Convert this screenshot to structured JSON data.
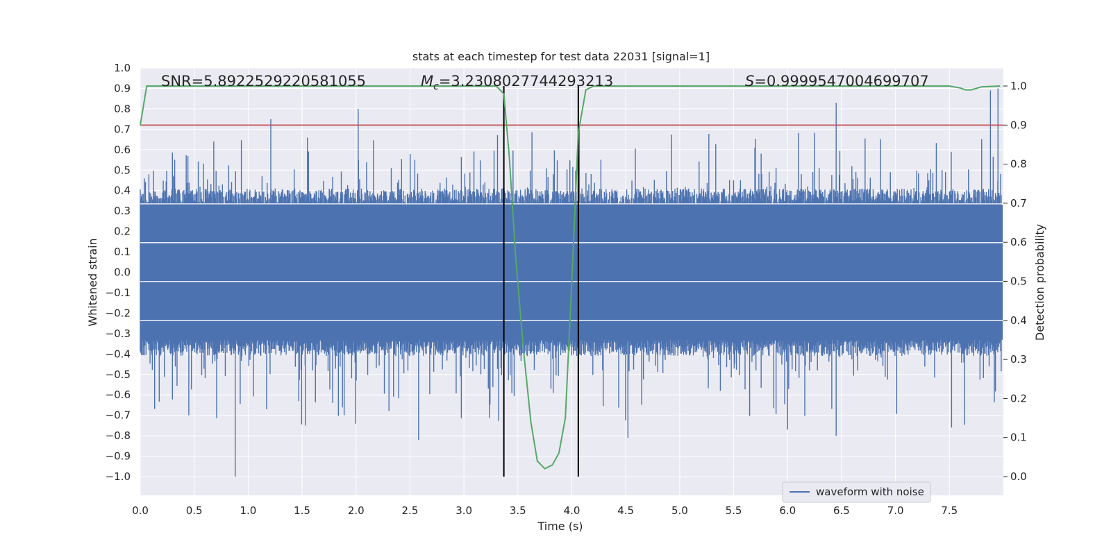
{
  "chart_data": {
    "type": "line",
    "title": "stats at each timestep for test data 22031 [signal=1]",
    "xlabel": "Time (s)",
    "ylabel": "Whitened strain",
    "ylabel_right": "Detection probability",
    "xlim": [
      0.0,
      8.0
    ],
    "ylim": [
      -1.0,
      1.0
    ],
    "ylim_right": [
      0.0,
      1.0
    ],
    "x_ticks": [
      "0.0",
      "0.5",
      "1.0",
      "1.5",
      "2.0",
      "2.5",
      "3.0",
      "3.5",
      "4.0",
      "4.5",
      "5.0",
      "5.5",
      "6.0",
      "6.5",
      "7.0",
      "7.5"
    ],
    "y_ticks": [
      "1.0",
      "0.9",
      "0.8",
      "0.7",
      "0.6",
      "0.5",
      "0.4",
      "0.3",
      "0.2",
      "0.1",
      "0.0",
      "−0.1",
      "−0.2",
      "−0.3",
      "−0.4",
      "−0.5",
      "−0.6",
      "−0.7",
      "−0.8",
      "−0.9",
      "−1.0"
    ],
    "y_ticks_right": [
      "1.0",
      "0.9",
      "0.8",
      "0.7",
      "0.6",
      "0.5",
      "0.4",
      "0.3",
      "0.2",
      "0.1",
      "0.0"
    ],
    "annotations": {
      "snr": "SNR=5.8922529220581055",
      "mc_symbol": "M",
      "mc_sub": "c",
      "mc_value": "=3.2308027744293213",
      "s_symbol": "S",
      "s_value": "=0.9999547004699707"
    },
    "legend": {
      "label": "waveform with noise",
      "position": "lower-right"
    },
    "threshold_right": 0.9,
    "signal_window": [
      3.37,
      4.06
    ],
    "noise_series": {
      "name": "waveform with noise",
      "color": "#4c72b0",
      "typical_range": [
        -0.33,
        0.33
      ],
      "peaks": [
        [
          1.21,
          0.75
        ],
        [
          2.02,
          0.8
        ],
        [
          6.45,
          0.83
        ],
        [
          7.95,
          0.9
        ],
        [
          7.88,
          0.89
        ],
        [
          3.37,
          0.72
        ],
        [
          4.07,
          0.7
        ],
        [
          0.88,
          -1.0
        ],
        [
          6.45,
          -0.8
        ],
        [
          4.52,
          -0.81
        ],
        [
          2.58,
          -0.82
        ],
        [
          1.53,
          -0.75
        ],
        [
          0.45,
          -0.7
        ],
        [
          7.52,
          -0.76
        ],
        [
          6.0,
          -0.77
        ]
      ]
    },
    "probability_series": {
      "name": "detection probability",
      "color": "#55a868",
      "x": [
        0.0,
        0.06,
        0.5,
        1.0,
        2.0,
        3.0,
        3.3,
        3.37,
        3.42,
        3.48,
        3.55,
        3.62,
        3.68,
        3.75,
        3.82,
        3.88,
        3.94,
        4.0,
        4.06,
        4.13,
        4.2,
        4.5,
        5.0,
        6.0,
        7.0,
        7.5,
        7.6,
        7.65,
        7.7,
        7.8,
        7.97
      ],
      "values": [
        0.9,
        1.0,
        1.0,
        1.0,
        1.0,
        1.0,
        1.0,
        0.98,
        0.82,
        0.56,
        0.33,
        0.14,
        0.04,
        0.02,
        0.03,
        0.06,
        0.15,
        0.5,
        0.88,
        0.99,
        1.0,
        1.0,
        1.0,
        1.0,
        1.0,
        1.0,
        0.995,
        0.99,
        0.99,
        0.998,
        1.0
      ]
    },
    "colors": {
      "background": "#eaeaf2",
      "grid": "#ffffff",
      "threshold": "#c44e52",
      "window_lines": "#000000"
    }
  }
}
